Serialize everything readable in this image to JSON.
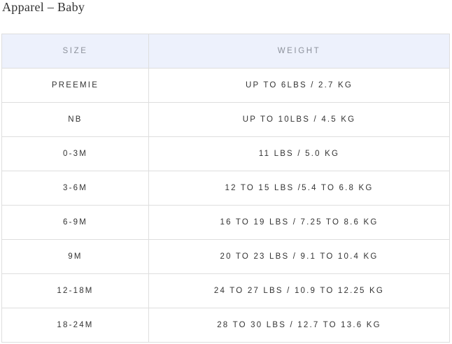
{
  "title": "Apparel – Baby",
  "table": {
    "headers": [
      "SIZE",
      "WEIGHT"
    ],
    "rows": [
      {
        "size": "PREEMIE",
        "weight": "UP TO 6LBS / 2.7 KG"
      },
      {
        "size": "NB",
        "weight": "UP TO 10LBS / 4.5 KG"
      },
      {
        "size": "0-3M",
        "weight": "11 LBS / 5.0 KG"
      },
      {
        "size": "3-6M",
        "weight": "12 TO 15 LBS /5.4 TO 6.8 KG"
      },
      {
        "size": "6-9M",
        "weight": "16 TO 19 LBS / 7.25 TO 8.6 KG"
      },
      {
        "size": "9M",
        "weight": "20 TO 23 LBS / 9.1 TO 10.4 KG"
      },
      {
        "size": "12-18M",
        "weight": "24 TO 27 LBS / 10.9 TO 12.25 KG"
      },
      {
        "size": "18-24M",
        "weight": "28 TO 30 LBS / 12.7 TO 13.6 KG"
      }
    ]
  },
  "colors": {
    "header_bg": "#edf1fc",
    "header_text": "#8c919b",
    "border": "#dedede"
  }
}
